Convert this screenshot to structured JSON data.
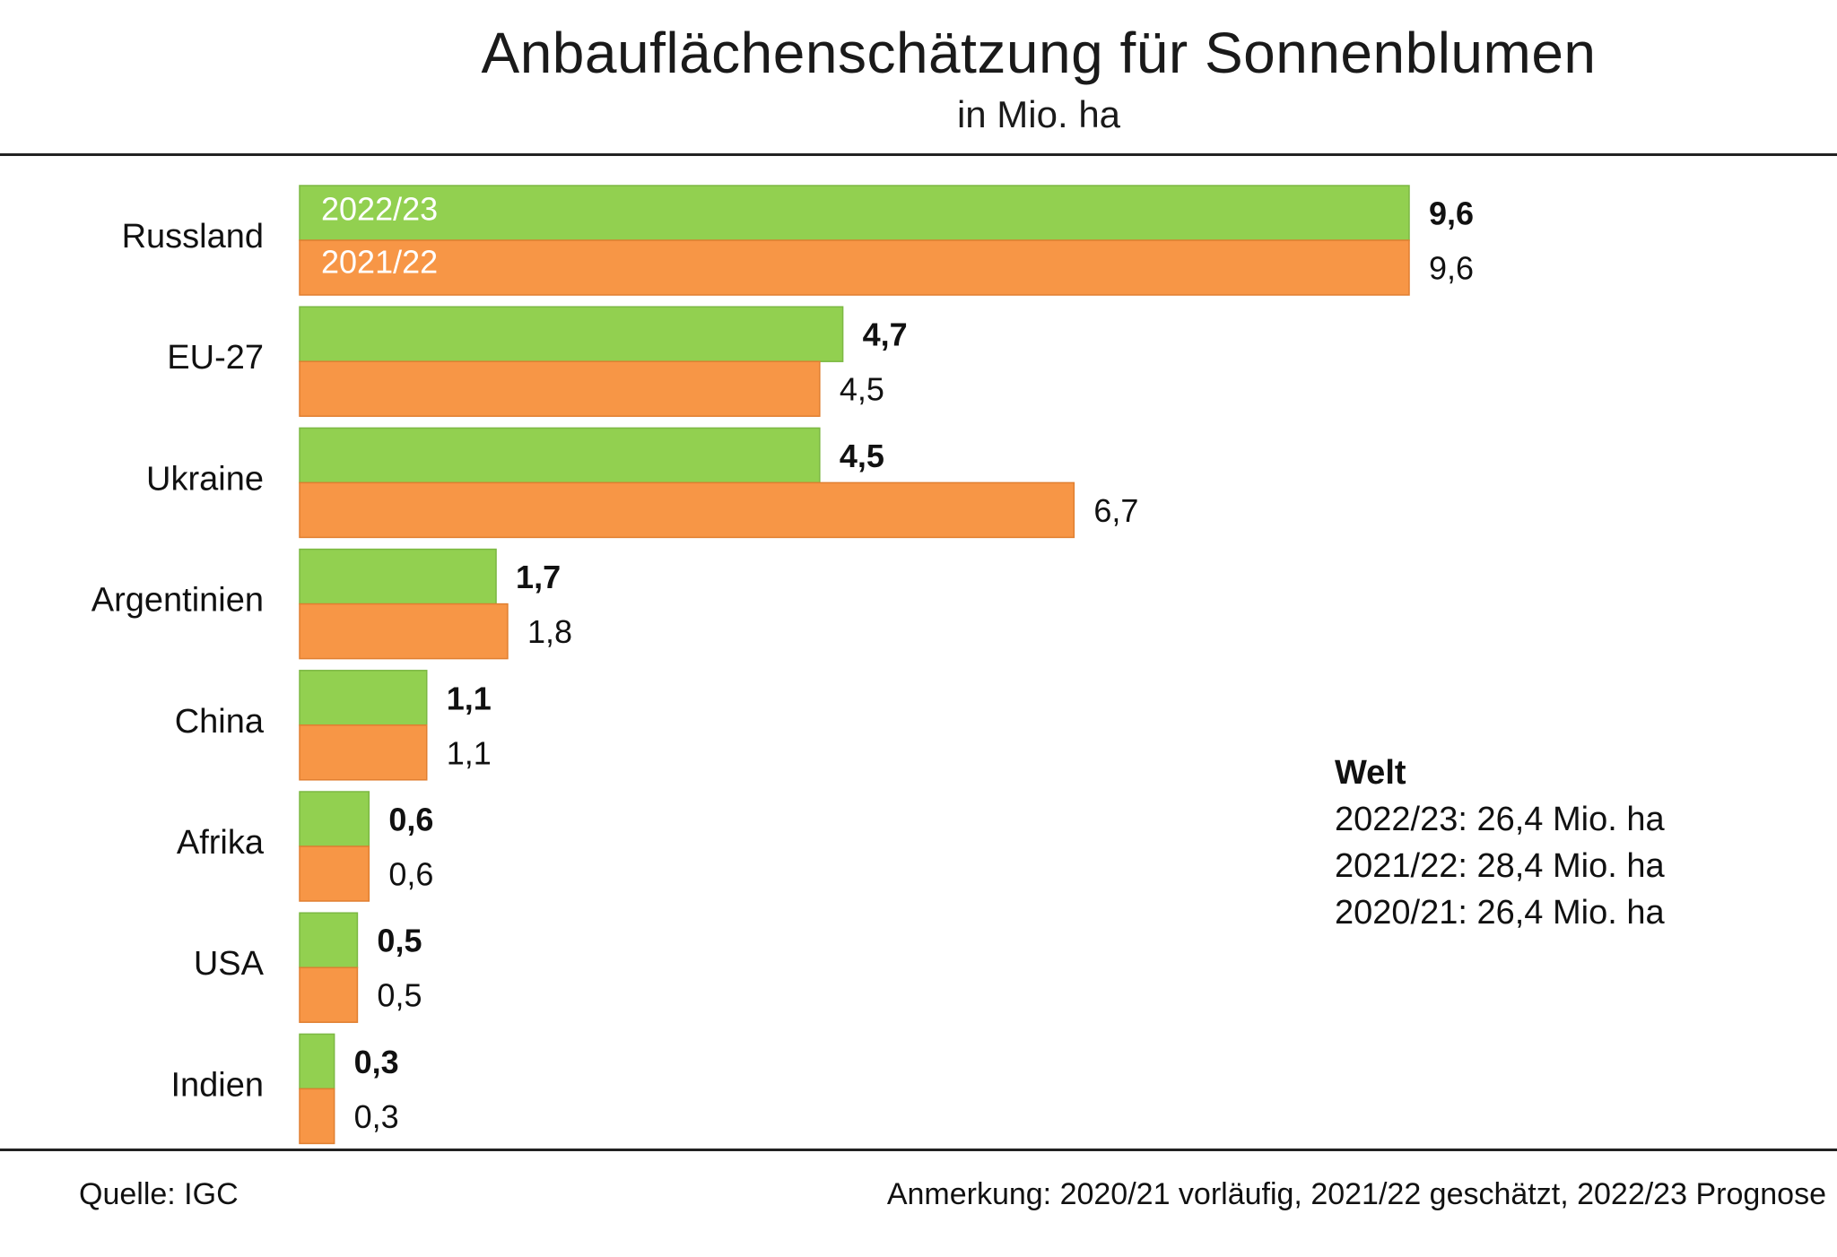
{
  "chart_data": {
    "type": "bar",
    "orientation": "horizontal",
    "title": "Anbauflächenschätzung für Sonnenblumen",
    "subtitle": "in Mio. ha",
    "categories": [
      "Russland",
      "EU-27",
      "Ukraine",
      "Argentinien",
      "China",
      "Afrika",
      "USA",
      "Indien"
    ],
    "series": [
      {
        "name": "2022/23",
        "color": "#92d050",
        "values": [
          9.6,
          4.7,
          4.5,
          1.7,
          1.1,
          0.6,
          0.5,
          0.3
        ],
        "labels": [
          "9,6",
          "4,7",
          "4,5",
          "1,7",
          "1,1",
          "0,6",
          "0,5",
          "0,3"
        ],
        "label_bold": true
      },
      {
        "name": "2021/22",
        "color": "#f79646",
        "values": [
          9.6,
          4.5,
          6.7,
          1.8,
          1.1,
          0.6,
          0.5,
          0.3
        ],
        "labels": [
          "9,6",
          "4,5",
          "6,7",
          "1,8",
          "1,1",
          "0,6",
          "0,5",
          "0,3"
        ],
        "label_bold": false
      }
    ],
    "xlim": [
      0,
      9.6
    ],
    "legend": "inside first bars"
  },
  "welt": {
    "heading": "Welt",
    "lines": [
      "2022/23: 26,4 Mio. ha",
      "2021/22: 28,4 Mio. ha",
      "2020/21: 26,4 Mio. ha"
    ]
  },
  "footer": {
    "source": "Quelle:  IGC",
    "note": "Anmerkung: 2020/21 vorläufig, 2021/22 geschätzt, 2022/23 Prognose"
  }
}
